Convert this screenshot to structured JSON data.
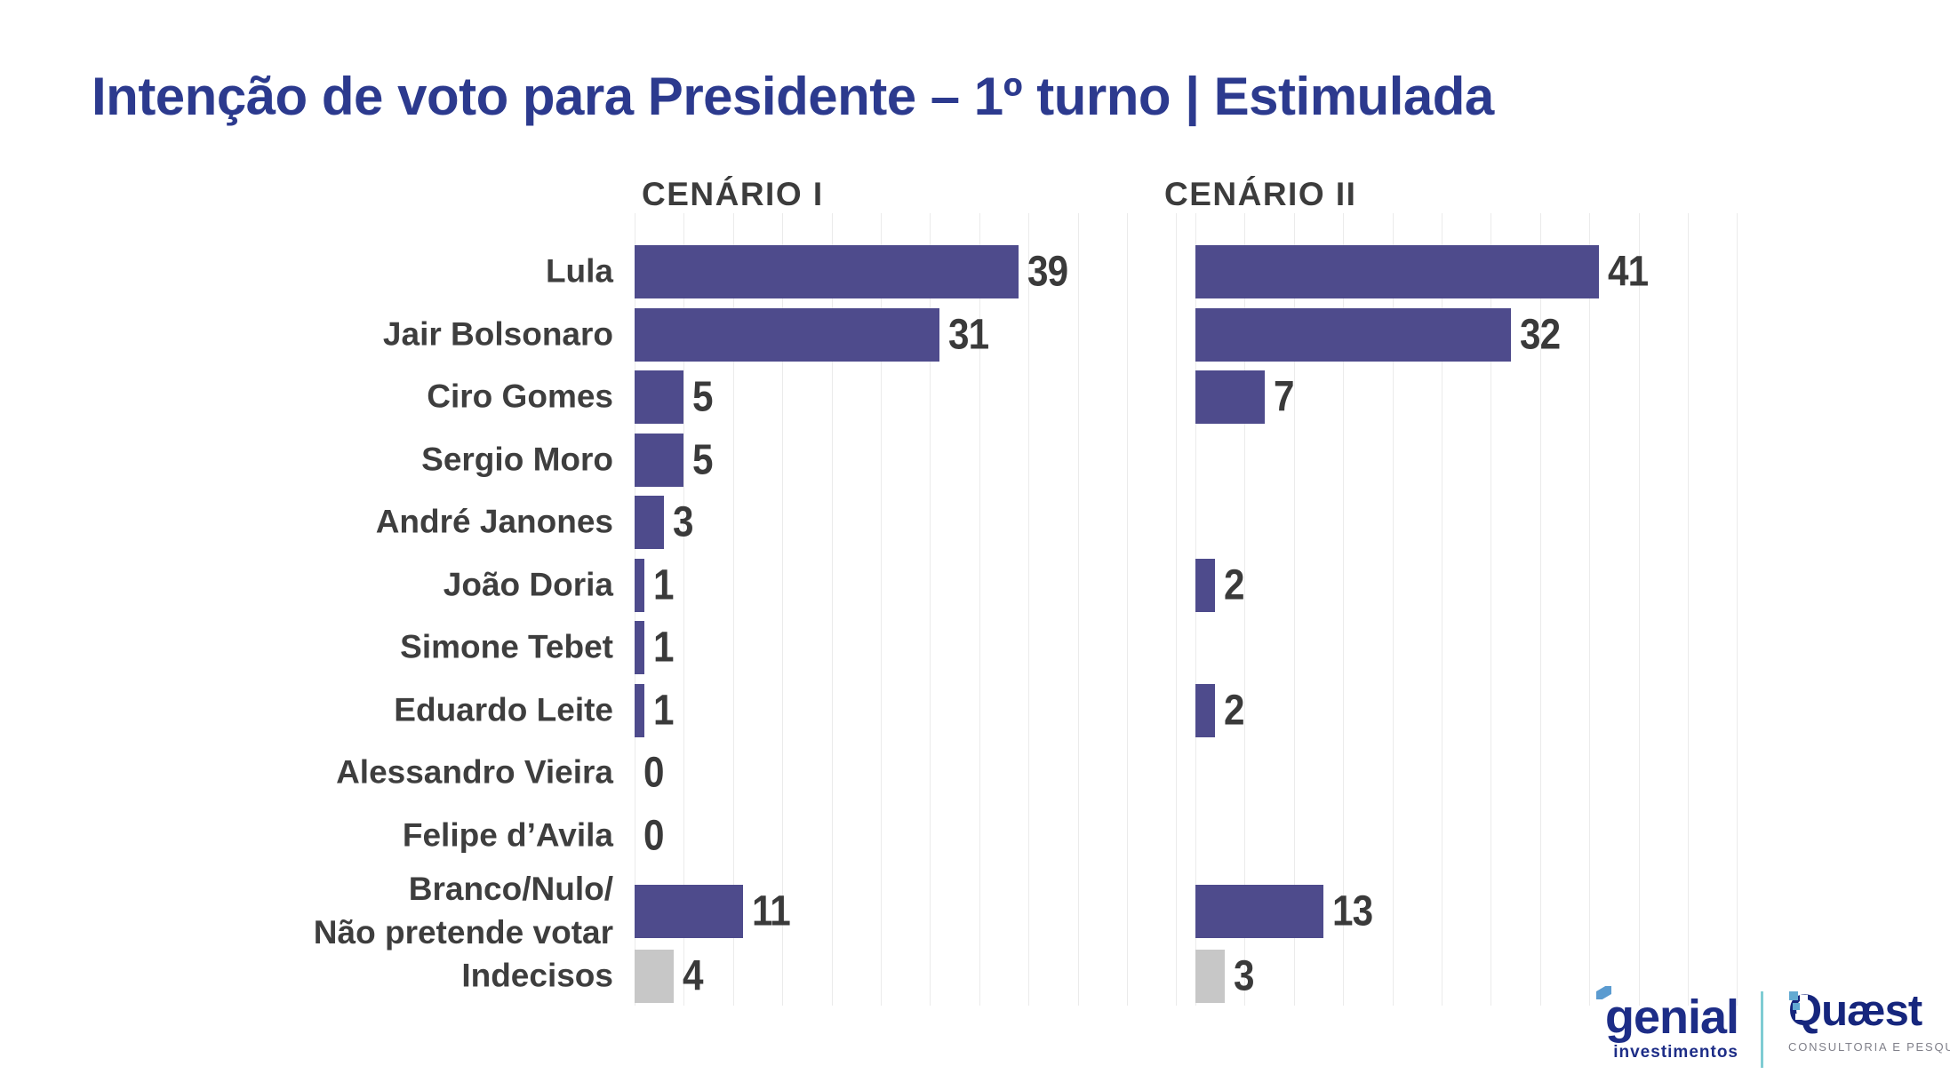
{
  "title": "Intenção de voto para Presidente – 1º turno | Estimulada",
  "panel_headers": [
    "CENÁRIO I",
    "CENÁRIO II"
  ],
  "chart_data": {
    "type": "bar",
    "orientation": "horizontal",
    "title": "Intenção de voto para Presidente – 1º turno | Estimulada",
    "categories": [
      "Lula",
      "Jair Bolsonaro",
      "Ciro Gomes",
      "Sergio Moro",
      "André Janones",
      "João Doria",
      "Simone Tebet",
      "Eduardo Leite",
      "Alessandro Vieira",
      "Felipe d’Avila",
      "Branco/Nulo/\nNão pretende votar",
      "Indecisos"
    ],
    "series": [
      {
        "name": "CENÁRIO I",
        "values": [
          39,
          31,
          5,
          5,
          3,
          1,
          1,
          1,
          0,
          0,
          11,
          4
        ]
      },
      {
        "name": "CENÁRIO II",
        "values": [
          41,
          32,
          7,
          null,
          null,
          2,
          null,
          2,
          null,
          null,
          13,
          3
        ]
      }
    ],
    "muted_category": "Indecisos",
    "bar_color": "#4e4b8c",
    "muted_bar_color": "#c7c7c7",
    "value_labels": true,
    "xlim": [
      0,
      55
    ],
    "gridline_step": 5,
    "grid": true,
    "legend_position": "none"
  },
  "footer": {
    "genial": {
      "name": "genial",
      "subtitle": "investimentos"
    },
    "quaest": {
      "name": "Quæst",
      "subtitle": "CONSULTORIA E PESQUISA"
    }
  },
  "colors": {
    "title": "#2c3a8e",
    "bar_purple": "#4e4b8c",
    "bar_gray": "#c7c7c7",
    "label_gray": "#3e3e3e",
    "gridline": "#ebebeb",
    "genial_navy": "#1d2d87",
    "genial_flag_blue": "#5b9bd0",
    "quaest_navy": "#16267d",
    "divider_teal": "#7fccd3",
    "quaest_sub_gray": "#80808a"
  }
}
